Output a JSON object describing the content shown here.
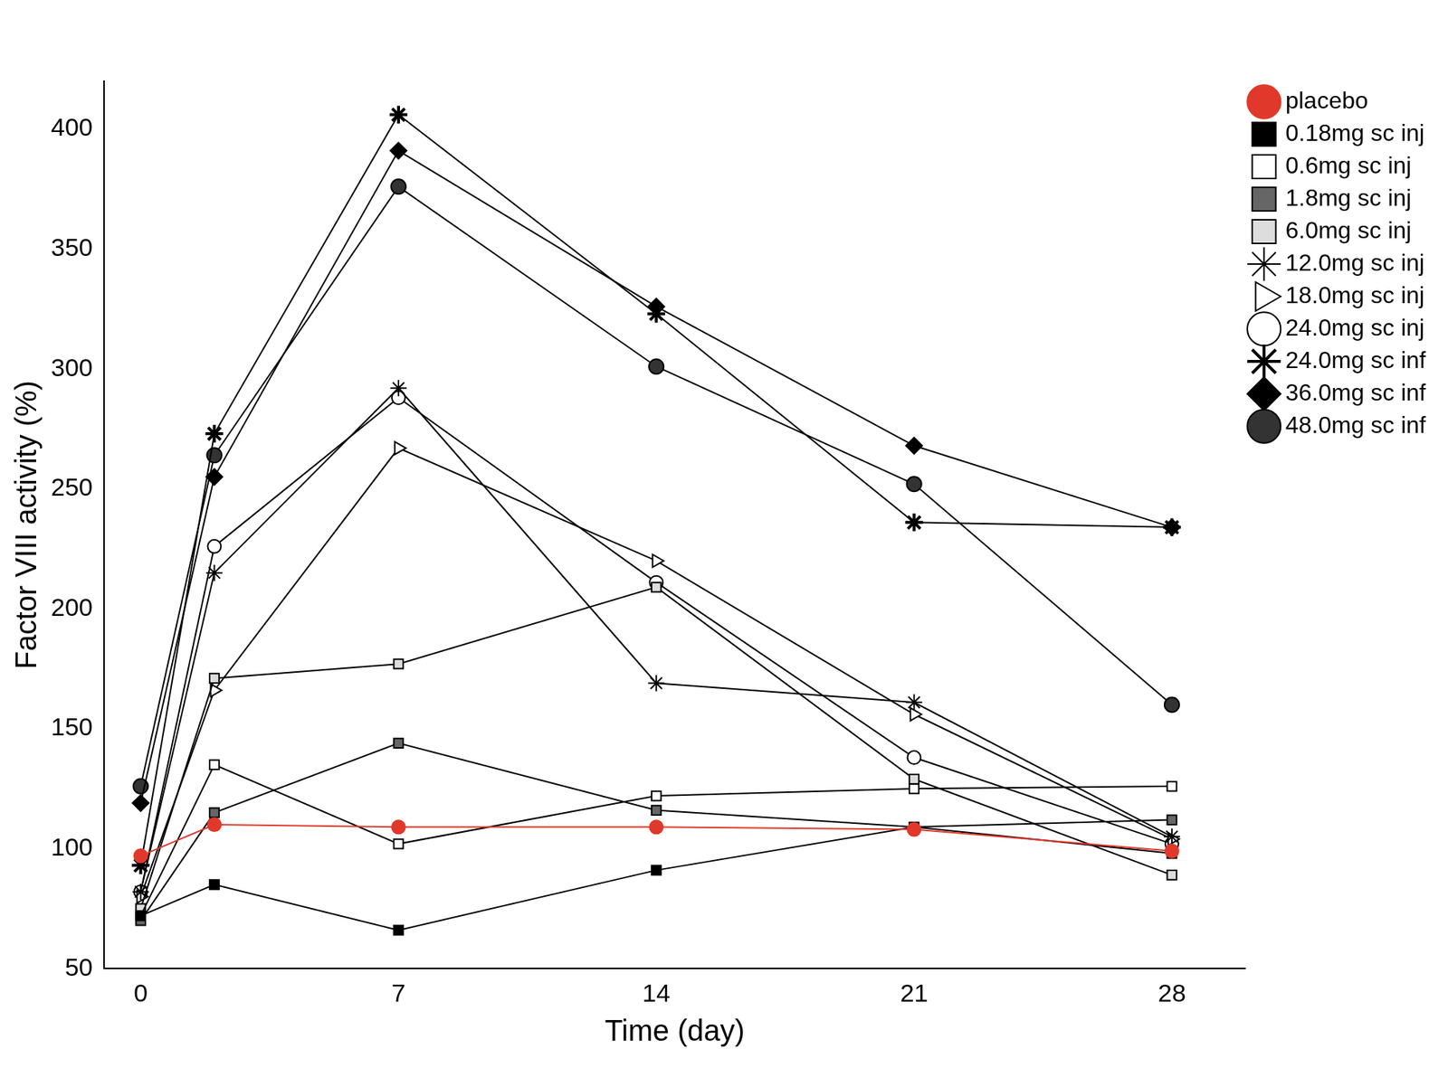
{
  "chart_data": {
    "type": "line",
    "x_label": "Time (day)",
    "y_label": "Factor VIII activity (%)",
    "x": [
      0,
      2,
      7,
      14,
      21,
      28
    ],
    "xlim": [
      -1,
      30
    ],
    "xticks": [
      0,
      7,
      14,
      21,
      28
    ],
    "ylim": [
      50,
      420
    ],
    "yticks": [
      50,
      100,
      150,
      200,
      250,
      300,
      350,
      400
    ],
    "grid": false,
    "legend": "top right",
    "series": [
      {
        "name": "placebo",
        "color": "#e0392b",
        "marker": "circle",
        "values": [
          97,
          110,
          109,
          109,
          108,
          99
        ]
      },
      {
        "name": "0.18mg sc inj",
        "color": "#000000",
        "marker": "square",
        "values": [
          72,
          85,
          66,
          91,
          109,
          98
        ]
      },
      {
        "name": "0.6mg sc inj",
        "color": "#000000",
        "marker": "open_square",
        "values": [
          72,
          135,
          102,
          122,
          125,
          126
        ]
      },
      {
        "name": "1.8mg sc inj",
        "color": "#000000",
        "marker": "half_square",
        "values": [
          70,
          115,
          144,
          116,
          109,
          112
        ]
      },
      {
        "name": "6.0mg sc inj",
        "color": "#000000",
        "marker": "crossed_square",
        "values": [
          75,
          171,
          177,
          209,
          129,
          89
        ]
      },
      {
        "name": "12.0mg sc inj",
        "color": "#000000",
        "marker": "open_star",
        "values": [
          82,
          215,
          292,
          169,
          161,
          105
        ]
      },
      {
        "name": "18.0mg sc inj",
        "color": "#000000",
        "marker": "open_triangle",
        "values": [
          80,
          166,
          267,
          220,
          156,
          104
        ]
      },
      {
        "name": "24.0mg sc inj",
        "color": "#000000",
        "marker": "open_circle",
        "values": [
          82,
          226,
          288,
          211,
          138,
          102
        ]
      },
      {
        "name": "24.0mg sc inf",
        "color": "#000000",
        "marker": "star",
        "values": [
          93,
          273,
          406,
          323,
          236,
          234
        ]
      },
      {
        "name": "36.0mg sc inf",
        "color": "#000000",
        "marker": "pentagon",
        "values": [
          119,
          255,
          391,
          326,
          268,
          234
        ]
      },
      {
        "name": "48.0mg sc inf",
        "color": "#000000",
        "marker": "ball",
        "values": [
          126,
          264,
          376,
          301,
          252,
          160
        ]
      }
    ]
  }
}
